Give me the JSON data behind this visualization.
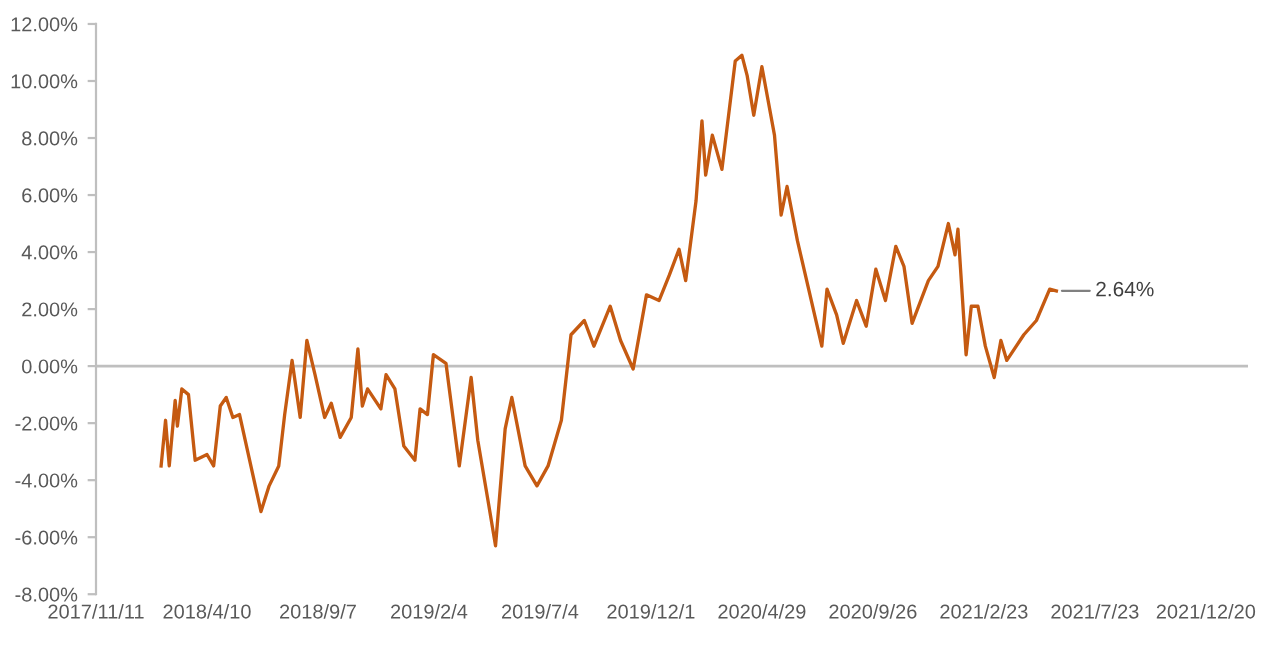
{
  "chart_data": {
    "type": "line",
    "x": [
      "2018-02-07",
      "2018-02-13",
      "2018-02-18",
      "2018-02-26",
      "2018-03-01",
      "2018-03-07",
      "2018-03-16",
      "2018-03-25",
      "2018-04-10",
      "2018-04-19",
      "2018-04-28",
      "2018-05-06",
      "2018-05-15",
      "2018-05-24",
      "2018-06-22",
      "2018-07-03",
      "2018-07-16",
      "2018-07-24",
      "2018-08-03",
      "2018-08-14",
      "2018-08-23",
      "2018-09-03",
      "2018-09-16",
      "2018-09-25",
      "2018-10-07",
      "2018-10-22",
      "2018-10-31",
      "2018-11-06",
      "2018-11-13",
      "2018-12-01",
      "2018-12-08",
      "2018-12-20",
      "2019-01-01",
      "2019-01-16",
      "2019-01-23",
      "2019-02-02",
      "2019-02-10",
      "2019-02-27",
      "2019-03-17",
      "2019-04-02",
      "2019-04-11",
      "2019-04-26",
      "2019-05-05",
      "2019-05-18",
      "2019-05-27",
      "2019-06-14",
      "2019-06-30",
      "2019-07-15",
      "2019-08-02",
      "2019-08-15",
      "2019-09-02",
      "2019-09-15",
      "2019-10-07",
      "2019-10-21",
      "2019-11-07",
      "2019-11-25",
      "2019-12-12",
      "2019-12-26",
      "2020-01-08",
      "2020-01-17",
      "2020-01-31",
      "2020-02-08",
      "2020-02-13",
      "2020-02-22",
      "2020-03-06",
      "2020-03-24",
      "2020-04-02",
      "2020-04-09",
      "2020-04-18",
      "2020-04-29",
      "2020-05-16",
      "2020-05-25",
      "2020-06-02",
      "2020-06-16",
      "2020-07-03",
      "2020-07-19",
      "2020-07-26",
      "2020-08-08",
      "2020-08-17",
      "2020-09-04",
      "2020-09-17",
      "2020-09-30",
      "2020-10-13",
      "2020-10-27",
      "2020-11-07",
      "2020-11-18",
      "2020-12-10",
      "2020-12-23",
      "2021-01-06",
      "2021-01-15",
      "2021-01-19",
      "2021-01-30",
      "2021-02-06",
      "2021-02-15",
      "2021-02-25",
      "2021-03-09",
      "2021-03-18",
      "2021-03-26",
      "2021-04-18",
      "2021-05-05",
      "2021-05-23",
      "2021-06-01"
    ],
    "series": [
      {
        "color": "#c55a11",
        "values": [
          -3.5,
          -1.9,
          -3.5,
          -1.2,
          -2.1,
          -0.8,
          -1.0,
          -3.3,
          -3.1,
          -3.5,
          -1.4,
          -1.1,
          -1.8,
          -1.7,
          -5.1,
          -4.2,
          -3.5,
          -1.7,
          0.2,
          -1.8,
          0.9,
          -0.3,
          -1.8,
          -1.3,
          -2.5,
          -1.8,
          0.6,
          -1.4,
          -0.8,
          -1.5,
          -0.3,
          -0.8,
          -2.8,
          -3.3,
          -1.5,
          -1.7,
          0.4,
          0.1,
          -3.5,
          -0.4,
          -2.6,
          -4.9,
          -6.3,
          -2.2,
          -1.1,
          -3.5,
          -4.2,
          -3.5,
          -1.9,
          1.1,
          1.6,
          0.7,
          2.1,
          0.9,
          -0.1,
          2.5,
          2.3,
          3.2,
          4.1,
          3.0,
          5.8,
          8.6,
          6.7,
          8.1,
          6.9,
          10.7,
          10.9,
          10.2,
          8.8,
          10.5,
          8.1,
          5.3,
          6.3,
          4.4,
          2.5,
          0.7,
          2.7,
          1.8,
          0.8,
          2.3,
          1.4,
          3.4,
          2.3,
          4.2,
          3.5,
          1.5,
          3.0,
          3.5,
          5.0,
          3.9,
          4.8,
          0.4,
          2.1,
          2.1,
          0.7,
          -0.4,
          0.9,
          0.2,
          1.1,
          1.6,
          2.7,
          2.64
        ]
      }
    ],
    "xlim": [
      "2017-11-11",
      "2022-02-15"
    ],
    "xticks": [
      {
        "value": "2017-11-11",
        "label": "2017/11/11"
      },
      {
        "value": "2018-04-10",
        "label": "2018/4/10"
      },
      {
        "value": "2018-09-07",
        "label": "2018/9/7"
      },
      {
        "value": "2019-02-04",
        "label": "2019/2/4"
      },
      {
        "value": "2019-07-04",
        "label": "2019/7/4"
      },
      {
        "value": "2019-12-01",
        "label": "2019/12/1"
      },
      {
        "value": "2020-04-29",
        "label": "2020/4/29"
      },
      {
        "value": "2020-09-26",
        "label": "2020/9/26"
      },
      {
        "value": "2021-02-23",
        "label": "2021/2/23"
      },
      {
        "value": "2021-07-23",
        "label": "2021/7/23"
      },
      {
        "value": "2021-12-20",
        "label": "2021/12/20"
      }
    ],
    "ylim": [
      -8,
      12
    ],
    "yticks": [
      {
        "value": -8,
        "label": "-8.00%"
      },
      {
        "value": -6,
        "label": "-6.00%"
      },
      {
        "value": -4,
        "label": "-4.00%"
      },
      {
        "value": -2,
        "label": "-2.00%"
      },
      {
        "value": 0,
        "label": "0.00%"
      },
      {
        "value": 2,
        "label": "2.00%"
      },
      {
        "value": 4,
        "label": "4.00%"
      },
      {
        "value": 6,
        "label": "6.00%"
      },
      {
        "value": 8,
        "label": "8.00%"
      },
      {
        "value": 10,
        "label": "10.00%"
      },
      {
        "value": 12,
        "label": "12.00%"
      }
    ],
    "ref_lines": [
      {
        "axis": "y",
        "value": 0,
        "color": "#bfbfbf"
      }
    ],
    "annotations": [
      {
        "text": "2.64%",
        "x": "2021-06-01",
        "y": 2.64
      }
    ],
    "grid": false,
    "legend": false,
    "marker": "none",
    "line_style": "solid"
  }
}
